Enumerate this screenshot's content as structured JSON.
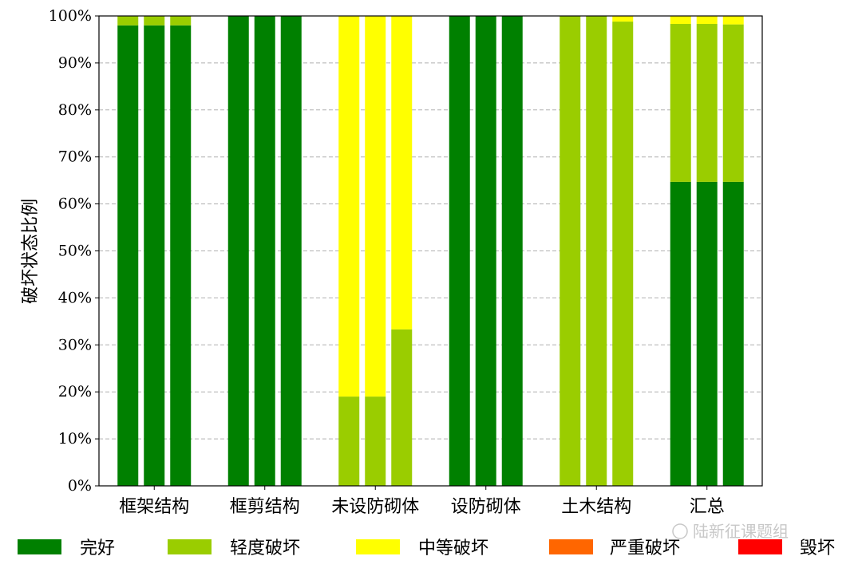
{
  "chart_data": {
    "type": "bar",
    "stacked": true,
    "bars_per_category": 3,
    "categories": [
      "框架结构",
      "框剪结构",
      "未设防砌体",
      "设防砌体",
      "土木结构",
      "汇总"
    ],
    "ylabel": "破坏状态比例",
    "ylim": [
      0,
      100
    ],
    "yticks": [
      "0%",
      "10%",
      "20%",
      "30%",
      "40%",
      "50%",
      "60%",
      "70%",
      "80%",
      "90%",
      "100%"
    ],
    "grid": "y-dashed",
    "legend_position": "bottom",
    "series": [
      {
        "name": "完好",
        "color": "#008000",
        "values": [
          [
            98,
            98,
            98
          ],
          [
            100,
            100,
            100
          ],
          [
            0,
            0,
            0
          ],
          [
            100,
            100,
            100
          ],
          [
            0,
            0,
            0
          ],
          [
            64.7,
            64.7,
            64.7
          ]
        ]
      },
      {
        "name": "轻度破坏",
        "color": "#9ACD00",
        "values": [
          [
            2,
            2,
            2
          ],
          [
            0,
            0,
            0
          ],
          [
            19,
            19,
            33.3
          ],
          [
            0,
            0,
            0
          ],
          [
            100,
            100,
            98.8
          ],
          [
            33.6,
            33.6,
            33.5
          ]
        ]
      },
      {
        "name": "中等破坏",
        "color": "#FFFF00",
        "values": [
          [
            0,
            0,
            0
          ],
          [
            0,
            0,
            0
          ],
          [
            81,
            81,
            66.7
          ],
          [
            0,
            0,
            0
          ],
          [
            0,
            0,
            1.2
          ],
          [
            1.7,
            1.7,
            1.8
          ]
        ]
      },
      {
        "name": "严重破坏",
        "color": "#FF6600",
        "values": [
          [
            0,
            0,
            0
          ],
          [
            0,
            0,
            0
          ],
          [
            0,
            0,
            0
          ],
          [
            0,
            0,
            0
          ],
          [
            0,
            0,
            0
          ],
          [
            0,
            0,
            0
          ]
        ]
      },
      {
        "name": "毁坏",
        "color": "#FF0000",
        "values": [
          [
            0,
            0,
            0
          ],
          [
            0,
            0,
            0
          ],
          [
            0,
            0,
            0
          ],
          [
            0,
            0,
            0
          ],
          [
            0,
            0,
            0
          ],
          [
            0,
            0,
            0
          ]
        ]
      }
    ]
  },
  "watermark": {
    "text": "陆新征课题组"
  }
}
